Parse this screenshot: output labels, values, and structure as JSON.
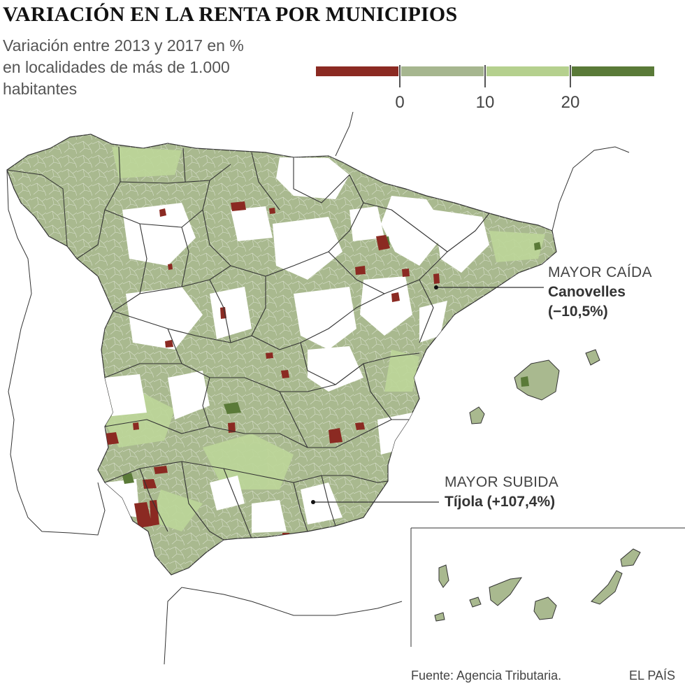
{
  "title": "VARIACIÓN EN LA RENTA POR MUNICIPIOS",
  "subtitle": "Variación entre 2013 y 2017 en % en localidades de más de 1.000 habitantes",
  "legend": {
    "bins": [
      {
        "color": "#8b2a22"
      },
      {
        "color": "#a6b68f"
      },
      {
        "color": "#b5d08e"
      },
      {
        "color": "#5a7a38"
      }
    ],
    "ticks": [
      "0",
      "10",
      "20"
    ]
  },
  "colors": {
    "land_base": "#a9b98f",
    "no_data": "#ffffff",
    "decline": "#8b2a22",
    "light_green": "#bcd699",
    "dark_green": "#5a7a38",
    "border": "#333333"
  },
  "callouts": {
    "max_drop": {
      "heading": "MAYOR CAÍDA",
      "name": "Canovelles",
      "value": "(−10,5%)"
    },
    "max_rise": {
      "heading": "MAYOR SUBIDA",
      "name": "Tíjola (+107,4%)"
    }
  },
  "footer": {
    "source": "Fuente: Agencia Tributaria.",
    "brand": "EL PAÍS"
  }
}
